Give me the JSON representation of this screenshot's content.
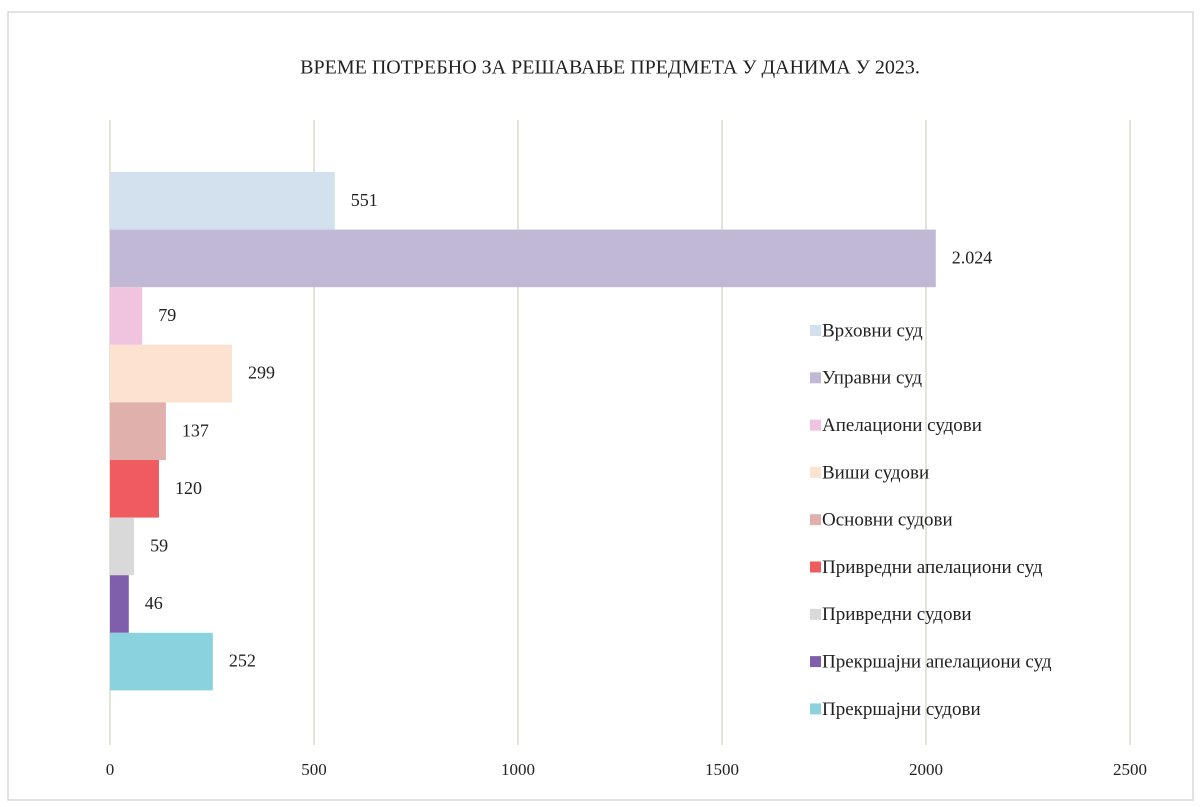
{
  "chart_data": {
    "type": "bar",
    "orientation": "horizontal",
    "title": "ВРЕМЕ ПОТРЕБНО ЗА РЕШАВАЊЕ ПРЕДМЕТА У ДАНИМА У 2023.",
    "series": [
      {
        "name": "Врховни суд",
        "color": "#d3e1ef",
        "values": [
          551
        ]
      },
      {
        "name": "Управни суд",
        "color": "#c1b8d6",
        "values": [
          2024
        ],
        "value_labels": [
          "2.024"
        ]
      },
      {
        "name": "Апелациони судови",
        "color": "#f0c3df",
        "values": [
          79
        ]
      },
      {
        "name": "Виши судови",
        "color": "#fde2cf",
        "values": [
          299
        ]
      },
      {
        "name": "Основни судови",
        "color": "#e0b0ad",
        "values": [
          137
        ]
      },
      {
        "name": "Привредни апелациони суд",
        "color": "#ef5b5e",
        "values": [
          120
        ]
      },
      {
        "name": "Привредни судови",
        "color": "#d9d9d9",
        "values": [
          59
        ]
      },
      {
        "name": "Прекршајни апелациони суд",
        "color": "#7f5fac",
        "values": [
          46
        ]
      },
      {
        "name": "Прекршајни судови",
        "color": "#8ad2de",
        "values": [
          252
        ]
      }
    ],
    "xlim": [
      0,
      2500
    ],
    "xticks": [
      0,
      500,
      1000,
      1500,
      2000,
      2500
    ],
    "grid": true,
    "legend": "right"
  }
}
